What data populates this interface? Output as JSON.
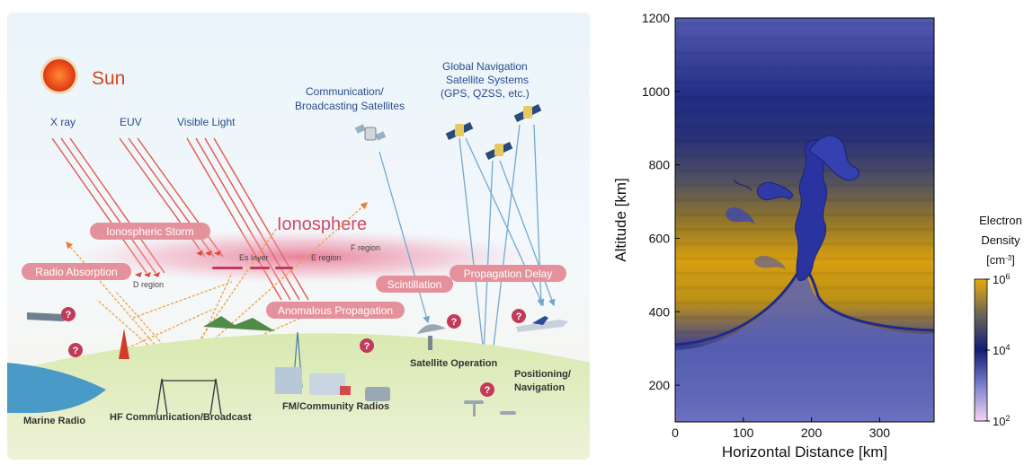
{
  "diagram": {
    "sun_label": "Sun",
    "radiation": {
      "xray": "X ray",
      "euv": "EUV",
      "visible": "Visible Light"
    },
    "comm_sat": {
      "line1": "Communication/",
      "line2": "Broadcasting Satellites"
    },
    "gnss": {
      "line1": "Global Navigation",
      "line2": "Satellite Systems",
      "line3": "(GPS, QZSS, etc.)"
    },
    "ionosphere": "Ionosphere",
    "regions": {
      "es": "Es layer",
      "e": "E region",
      "f": "F region",
      "d": "D region"
    },
    "effects": {
      "storm": "Ionospheric Storm",
      "absorption": "Radio Absorption",
      "anomalous": "Anomalous Propagation",
      "scintillation": "Scintillation",
      "delay": "Propagation Delay"
    },
    "question_mark": "?",
    "ground": {
      "marine": "Marine Radio",
      "hf": "HF Communication/Broadcast",
      "fm": "FM/Community Radios",
      "sat_op": "Satellite Operation",
      "pos1": "Positioning/",
      "pos2": "Navigation"
    }
  },
  "chart_data": {
    "type": "heatmap",
    "xlabel": "Horizontal Distance [km]",
    "ylabel": "Altitude [km]",
    "xlim": [
      0,
      380
    ],
    "ylim": [
      100,
      1200
    ],
    "x_ticks": [
      "0",
      "100",
      "200",
      "300"
    ],
    "x_tick_values": [
      0,
      100,
      200,
      300
    ],
    "y_ticks": [
      "200",
      "400",
      "600",
      "800",
      "1000",
      "1200"
    ],
    "y_tick_values": [
      200,
      400,
      600,
      800,
      1000,
      1200
    ],
    "colorbar": {
      "title_line1": "Electron",
      "title_line2": "Density",
      "unit_base": "[cm",
      "unit_exp": "-3",
      "unit_close": "]",
      "ticks": [
        {
          "base": "10",
          "exp": "6",
          "value": 6
        },
        {
          "base": "10",
          "exp": "4",
          "value": 4
        },
        {
          "base": "10",
          "exp": "2",
          "value": 2
        }
      ],
      "range_log10": [
        2,
        6
      ]
    },
    "colors": {
      "low": "#f0d0f0",
      "mid_low": "#6f78c8",
      "mid": "#18217a",
      "mid_high": "#565a70",
      "high": "#e4a812"
    }
  }
}
